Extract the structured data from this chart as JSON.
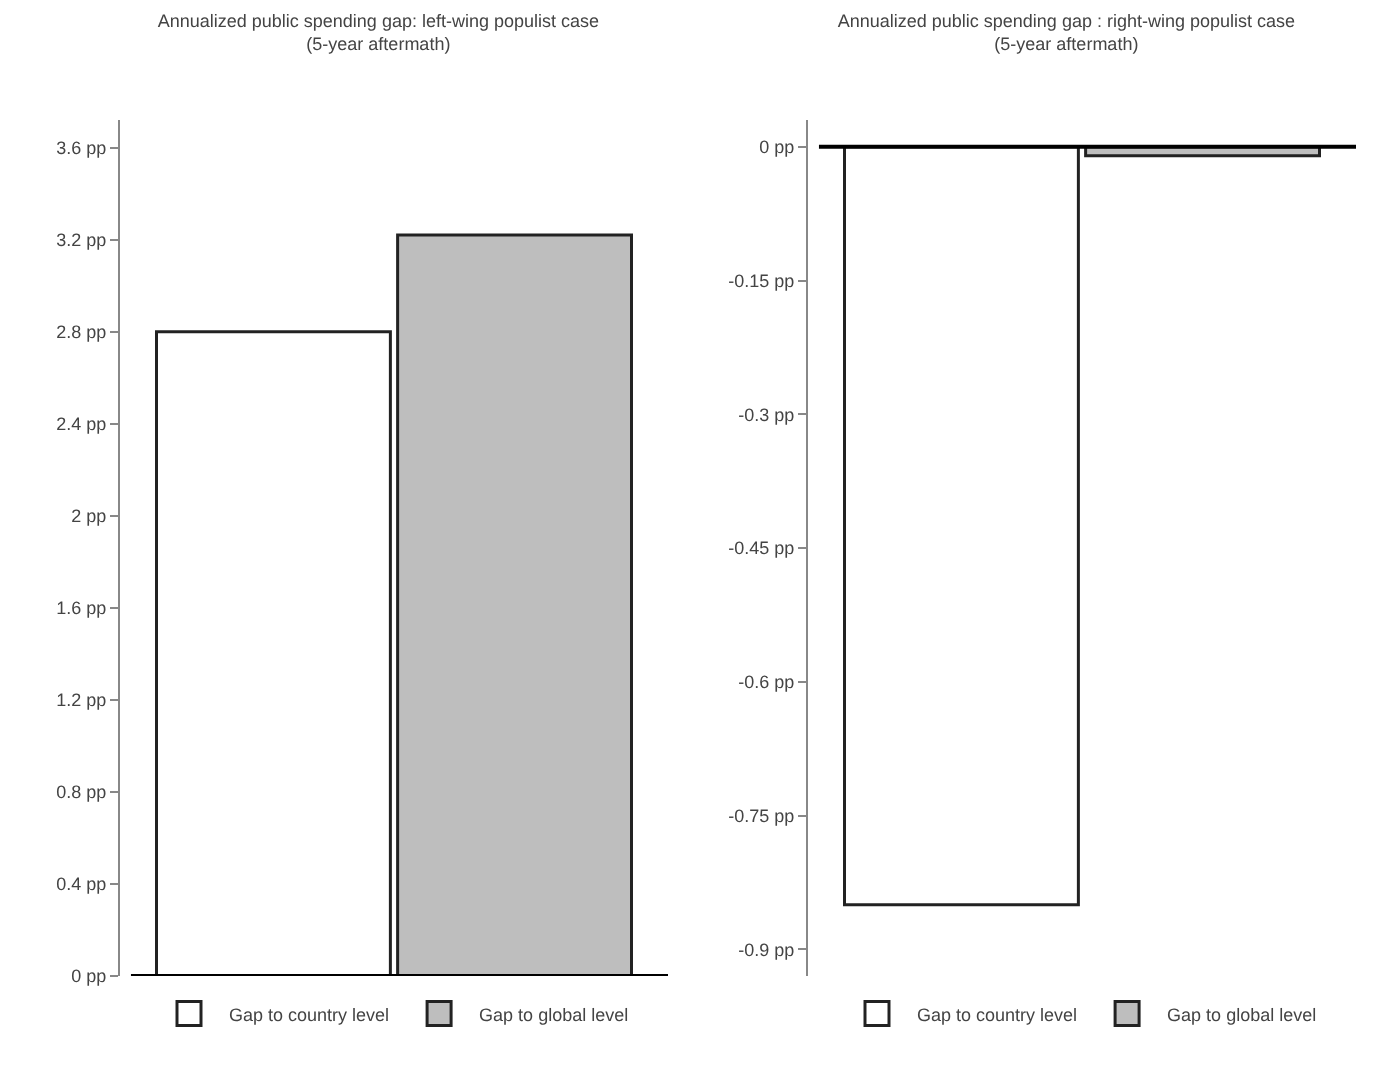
{
  "chart_data": [
    {
      "type": "bar",
      "title": "Annualized public spending gap: left-wing populist case",
      "subtitle": "(5-year aftermath)",
      "categories": [
        null
      ],
      "series": [
        {
          "name": "Gap to country level",
          "color": "#ffffff",
          "values": [
            2.8
          ]
        },
        {
          "name": "Gap to global level",
          "color": "#bebebe",
          "values": [
            3.22
          ]
        }
      ],
      "ylim": [
        0,
        3.72
      ],
      "yticks": [
        {
          "value": 0,
          "label": "0 pp"
        },
        {
          "value": 0.4,
          "label": "0.4 pp"
        },
        {
          "value": 0.8,
          "label": "0.8 pp"
        },
        {
          "value": 1.2,
          "label": "1.2 pp"
        },
        {
          "value": 1.6,
          "label": "1.6 pp"
        },
        {
          "value": 2,
          "label": "2 pp"
        },
        {
          "value": 2.4,
          "label": "2.4 pp"
        },
        {
          "value": 2.8,
          "label": "2.8 pp"
        },
        {
          "value": 3.2,
          "label": "3.2 pp"
        },
        {
          "value": 3.6,
          "label": "3.6 pp"
        }
      ],
      "ref_lines": [
        {
          "axis": "y",
          "value": 0,
          "color": "#000000"
        }
      ],
      "grid": false,
      "legend": "bottom",
      "tick_labels": "y"
    },
    {
      "type": "bar",
      "title": "Annualized public spending gap : right-wing populist case",
      "subtitle": "(5-year aftermath)",
      "categories": [
        null
      ],
      "series": [
        {
          "name": "Gap to country level",
          "color": "#ffffff",
          "values": [
            -0.85
          ]
        },
        {
          "name": "Gap to global level",
          "color": "#bebebe",
          "values": [
            -0.01
          ]
        }
      ],
      "ylim": [
        -0.93,
        0.03
      ],
      "yticks": [
        {
          "value": -0.9,
          "label": "-0.9 pp"
        },
        {
          "value": -0.75,
          "label": "-0.75 pp"
        },
        {
          "value": -0.6,
          "label": "-0.6 pp"
        },
        {
          "value": -0.45,
          "label": "-0.45 pp"
        },
        {
          "value": -0.3,
          "label": "-0.3 pp"
        },
        {
          "value": -0.15,
          "label": "-0.15 pp"
        },
        {
          "value": 0,
          "label": "0 pp"
        }
      ],
      "ref_lines": [
        {
          "axis": "y",
          "value": 0,
          "color": "#000000"
        }
      ],
      "grid": false,
      "legend": "bottom",
      "tick_labels": "y"
    }
  ]
}
